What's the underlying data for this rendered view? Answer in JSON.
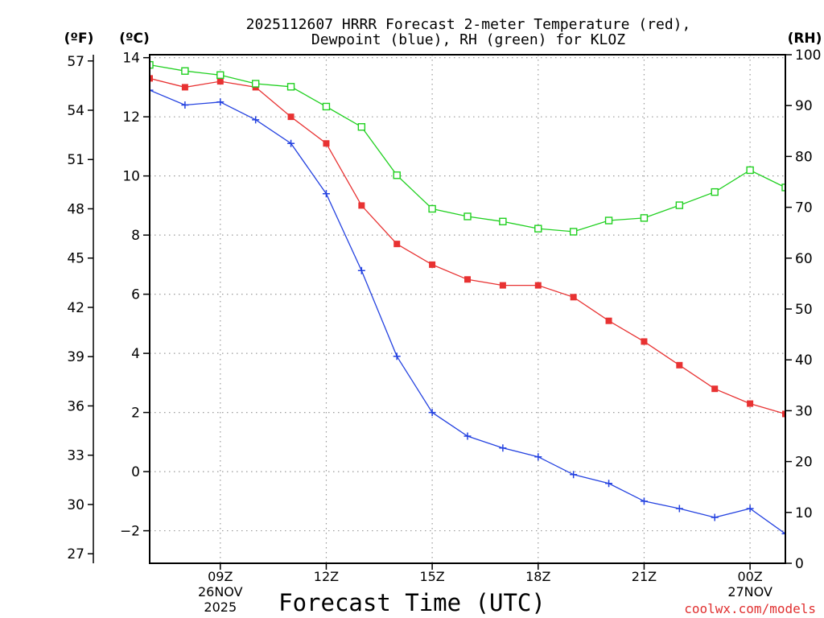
{
  "chart_data": {
    "type": "line",
    "title_line1": "2025112607 HRRR Forecast 2-meter Temperature (red),",
    "title_line2": "Dewpoint (blue), RH (green) for KLOZ",
    "xlabel": "Forecast Time (UTC)",
    "left_outer_unit": "(ºF)",
    "left_inner_unit": "(ºC)",
    "right_unit": "(RH)",
    "watermark": "coolwx.com/models",
    "xlim": [
      7,
      25
    ],
    "ylim_c": [
      -3.1,
      14.1
    ],
    "ylim_f": [
      26.42,
      57.38
    ],
    "ylim_rh": [
      0,
      100
    ],
    "x_ticks": [
      {
        "x": 9,
        "label": "09Z"
      },
      {
        "x": 12,
        "label": "12Z"
      },
      {
        "x": 15,
        "label": "15Z"
      },
      {
        "x": 18,
        "label": "18Z"
      },
      {
        "x": 21,
        "label": "21Z"
      },
      {
        "x": 24,
        "label": "00Z"
      }
    ],
    "date_labels": [
      {
        "x": 9,
        "line1": "26NOV",
        "line2": "2025"
      },
      {
        "x": 24,
        "line1": "27NOV",
        "line2": ""
      }
    ],
    "y_ticks_c": [
      14,
      12,
      10,
      8,
      6,
      4,
      2,
      0,
      -2
    ],
    "y_ticks_c_labels": [
      "14",
      "12",
      "10",
      "8",
      "6",
      "4",
      "2",
      "0",
      "−2"
    ],
    "y_ticks_f": [
      57,
      54,
      51,
      48,
      45,
      42,
      39,
      36,
      33,
      30,
      27
    ],
    "y_ticks_rh": [
      100,
      90,
      80,
      70,
      60,
      50,
      40,
      30,
      20,
      10,
      0
    ],
    "x": [
      7,
      8,
      9,
      10,
      11,
      12,
      13,
      14,
      15,
      16,
      17,
      18,
      19,
      20,
      21,
      22,
      23,
      24,
      25
    ],
    "series": [
      {
        "name": "Temperature",
        "unit": "C",
        "color": "#e83232",
        "marker": "filled-square",
        "values": [
          13.3,
          13.0,
          13.2,
          13.0,
          12.0,
          11.1,
          9.0,
          7.7,
          7.0,
          6.5,
          6.3,
          6.3,
          5.9,
          5.1,
          4.4,
          3.6,
          2.8,
          2.3,
          1.95
        ]
      },
      {
        "name": "Dewpoint",
        "unit": "C",
        "color": "#2442e0",
        "marker": "plus",
        "values": [
          12.9,
          12.4,
          12.5,
          11.9,
          11.1,
          9.4,
          6.8,
          3.9,
          2.0,
          1.2,
          0.8,
          0.5,
          -0.1,
          -0.4,
          -1.0,
          -1.25,
          -1.55,
          -1.25,
          -2.1
        ]
      },
      {
        "name": "RH",
        "unit": "%",
        "color": "#20d020",
        "marker": "open-square",
        "values": [
          98.0,
          96.8,
          96.0,
          94.3,
          93.7,
          89.8,
          85.8,
          76.3,
          69.7,
          68.2,
          67.2,
          65.8,
          65.2,
          67.4,
          67.9,
          70.4,
          73.0,
          77.3,
          73.9
        ]
      }
    ]
  }
}
